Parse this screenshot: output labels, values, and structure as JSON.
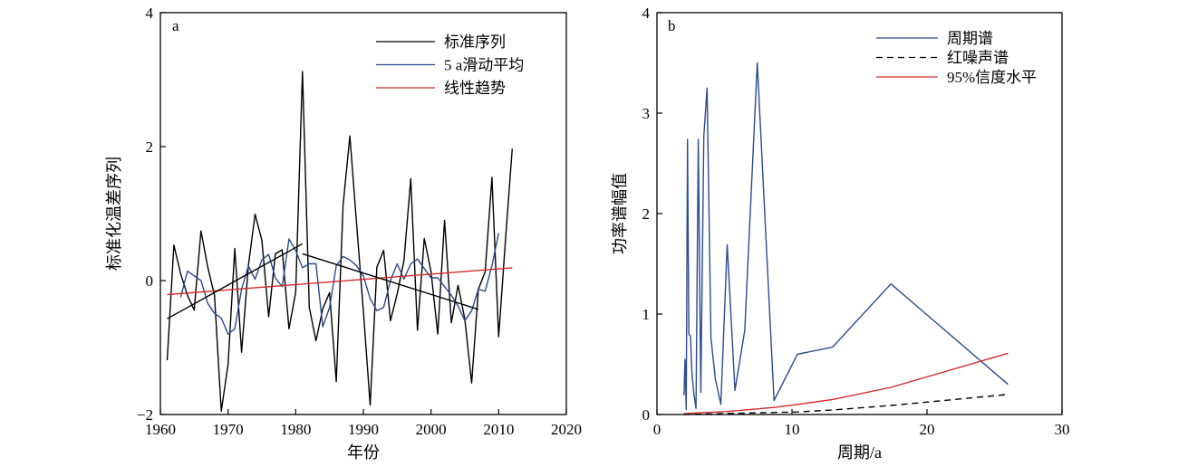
{
  "chart_data": [
    {
      "type": "line",
      "panel_label": "a",
      "xlabel": "年份",
      "ylabel": "标准化温差序列",
      "xlim": [
        1960,
        2020
      ],
      "ylim": [
        -2,
        4
      ],
      "xticks": [
        1960,
        1970,
        1980,
        1990,
        2000,
        2010,
        2020
      ],
      "yticks": [
        -2,
        0,
        2,
        4
      ],
      "legend_position": "top-right",
      "series": [
        {
          "name": "标准序列",
          "color": "#000000",
          "style": "solid",
          "x": [
            1961,
            1962,
            1963,
            1964,
            1965,
            1966,
            1967,
            1968,
            1969,
            1970,
            1971,
            1972,
            1973,
            1974,
            1975,
            1976,
            1977,
            1978,
            1979,
            1980,
            1981,
            1982,
            1983,
            1984,
            1985,
            1986,
            1987,
            1988,
            1989,
            1990,
            1991,
            1992,
            1993,
            1994,
            1995,
            1996,
            1997,
            1998,
            1999,
            2000,
            2001,
            2002,
            2003,
            2004,
            2005,
            2006,
            2007,
            2008,
            2009,
            2010,
            2011,
            2012
          ],
          "y": [
            -1.19,
            0.53,
            0.1,
            -0.22,
            -0.44,
            0.74,
            0.2,
            -0.22,
            -1.95,
            -1.25,
            0.48,
            -1.07,
            0.22,
            0.99,
            0.6,
            -0.54,
            0.4,
            0.46,
            -0.72,
            -0.18,
            3.12,
            -0.4,
            -0.9,
            -0.42,
            -0.18,
            -1.51,
            1.12,
            2.16,
            0.85,
            -0.45,
            -1.86,
            0.2,
            0.45,
            -0.6,
            -0.2,
            0.3,
            1.52,
            -0.74,
            0.63,
            0.13,
            -0.8,
            0.9,
            -0.63,
            -0.07,
            -0.58,
            -1.53,
            -0.13,
            0.13,
            1.54,
            -0.84,
            0.6,
            1.97
          ]
        },
        {
          "name": "5 a滑动平均",
          "color": "#2b4a8f",
          "style": "solid",
          "x": [
            1963,
            1964,
            1965,
            1966,
            1967,
            1968,
            1969,
            1970,
            1971,
            1972,
            1973,
            1974,
            1975,
            1976,
            1977,
            1978,
            1979,
            1980,
            1981,
            1982,
            1983,
            1984,
            1985,
            1986,
            1987,
            1988,
            1989,
            1990,
            1991,
            1992,
            1993,
            1994,
            1995,
            1996,
            1997,
            1998,
            1999,
            2000,
            2001,
            2002,
            2003,
            2004,
            2005,
            2006,
            2007,
            2008,
            2009,
            2010
          ],
          "y": [
            -0.25,
            0.14,
            0.07,
            0.0,
            -0.34,
            -0.49,
            -0.56,
            -0.8,
            -0.72,
            -0.13,
            0.22,
            0.02,
            0.31,
            0.39,
            0.04,
            -0.09,
            0.62,
            0.45,
            0.19,
            0.25,
            0.25,
            -0.69,
            -0.4,
            0.22,
            0.36,
            0.31,
            0.22,
            0.07,
            -0.27,
            -0.45,
            -0.4,
            0.0,
            0.25,
            0.02,
            0.25,
            0.32,
            0.18,
            0.04,
            0.04,
            -0.09,
            -0.22,
            -0.38,
            -0.6,
            -0.45,
            -0.13,
            -0.16,
            0.22,
            0.71
          ]
        },
        {
          "name": "线性趋势",
          "color": "#d42a2a",
          "style": "solid",
          "x": [
            1961,
            2012
          ],
          "y": [
            -0.21,
            0.19
          ]
        },
        {
          "name": "trend-1961-1981",
          "color": "#000000",
          "style": "solid",
          "in_legend": false,
          "x": [
            1961,
            1981
          ],
          "y": [
            -0.57,
            0.55
          ]
        },
        {
          "name": "trend-1981-2007",
          "color": "#000000",
          "style": "solid",
          "in_legend": false,
          "x": [
            1981,
            2007
          ],
          "y": [
            0.4,
            -0.43
          ]
        }
      ]
    },
    {
      "type": "line",
      "panel_label": "b",
      "xlabel": "周期/a",
      "ylabel": "功率谱幅值",
      "xlim": [
        0,
        30
      ],
      "ylim": [
        0,
        4
      ],
      "xticks": [
        0,
        10,
        20,
        30
      ],
      "yticks": [
        0,
        1,
        2,
        3,
        4
      ],
      "legend_position": "top-right",
      "series": [
        {
          "name": "周期谱",
          "color": "#2b4a8f",
          "style": "solid",
          "x": [
            2.0,
            2.08,
            2.17,
            2.26,
            2.36,
            2.48,
            2.6,
            2.74,
            2.89,
            3.06,
            3.25,
            3.47,
            3.71,
            4.0,
            4.33,
            4.73,
            5.2,
            5.78,
            6.5,
            7.43,
            8.67,
            10.4,
            13.0,
            17.33,
            26.0
          ],
          "y": [
            0.19,
            0.55,
            0.05,
            2.74,
            0.8,
            0.78,
            0.4,
            0.2,
            0.06,
            2.74,
            0.22,
            2.77,
            3.25,
            0.76,
            0.35,
            0.1,
            1.69,
            0.24,
            0.84,
            3.5,
            0.14,
            0.6,
            0.67,
            1.3,
            0.3
          ]
        },
        {
          "name": "红噪声谱",
          "color": "#000000",
          "style": "dashed",
          "x": [
            2.0,
            5.2,
            8.67,
            10.4,
            13.0,
            17.33,
            26.0
          ],
          "y": [
            0.0,
            0.01,
            0.02,
            0.025,
            0.045,
            0.09,
            0.2
          ]
        },
        {
          "name": "95%信度水平",
          "color": "#d42a2a",
          "style": "solid",
          "x": [
            2.0,
            5.2,
            8.67,
            10.4,
            13.0,
            17.33,
            26.0
          ],
          "y": [
            0.01,
            0.03,
            0.07,
            0.1,
            0.15,
            0.27,
            0.61
          ]
        }
      ]
    }
  ]
}
